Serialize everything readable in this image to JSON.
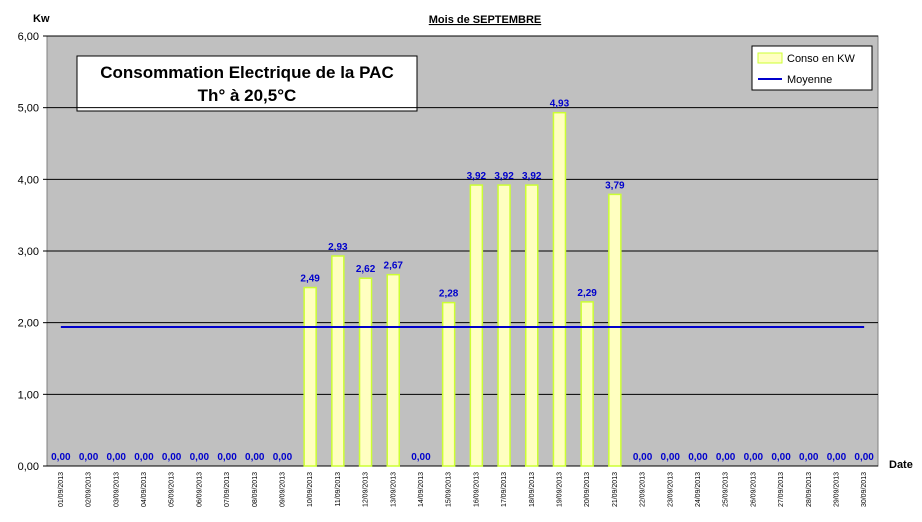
{
  "chart_data": {
    "type": "bar",
    "title": "Mois  de  SEPTEMBRE",
    "y_label": "Kw",
    "x_label": "Date",
    "annotation": [
      "Consommation Electrique de la PAC",
      "Th° à  20,5°C"
    ],
    "categories": [
      "01/09/2013",
      "02/09/2013",
      "03/09/2013",
      "04/09/2013",
      "05/09/2013",
      "06/09/2013",
      "07/09/2013",
      "08/09/2013",
      "09/09/2013",
      "10/09/2013",
      "11/09/2013",
      "12/09/2013",
      "13/09/2013",
      "14/09/2013",
      "15/09/2013",
      "16/09/2013",
      "17/09/2013",
      "18/09/2013",
      "19/09/2013",
      "20/09/2013",
      "21/09/2013",
      "22/09/2013",
      "23/09/2013",
      "24/09/2013",
      "25/09/2013",
      "26/09/2013",
      "27/09/2013",
      "28/09/2013",
      "29/09/2013",
      "30/09/2013"
    ],
    "series": [
      {
        "name": "Conso en KW",
        "type": "bar",
        "color": "#ffffc0",
        "edge_color": "#ccff33",
        "values": [
          0,
          0,
          0,
          0,
          0,
          0,
          0,
          0,
          0,
          2.49,
          2.93,
          2.62,
          2.67,
          0,
          2.28,
          3.92,
          3.92,
          3.92,
          4.93,
          2.29,
          3.79,
          0,
          0,
          0,
          0,
          0,
          0,
          0,
          0,
          0
        ],
        "value_labels": [
          "0,00",
          "0,00",
          "0,00",
          "0,00",
          "0,00",
          "0,00",
          "0,00",
          "0,00",
          "0,00",
          "2,49",
          "2,93",
          "2,62",
          "2,67",
          "0,00",
          "2,28",
          "3,92",
          "3,92",
          "3,92",
          "4,93",
          "2,29",
          "3,79",
          "0,00",
          "0,00",
          "0,00",
          "0,00",
          "0,00",
          "0,00",
          "0,00",
          "0,00",
          "0,00"
        ]
      },
      {
        "name": "Moyenne",
        "type": "line",
        "color": "#0000cc",
        "values": [
          1.94,
          1.94,
          1.94,
          1.94,
          1.94,
          1.94,
          1.94,
          1.94,
          1.94,
          1.94,
          1.94,
          1.94,
          1.94,
          1.94,
          1.94,
          1.94,
          1.94,
          1.94,
          1.94,
          1.94,
          1.94,
          1.94,
          1.94,
          1.94,
          1.94,
          1.94,
          1.94,
          1.94,
          1.94,
          1.94
        ]
      }
    ],
    "ylim": [
      0,
      6
    ],
    "yticks": [
      {
        "value": 0,
        "label": "0,00"
      },
      {
        "value": 1,
        "label": "1,00"
      },
      {
        "value": 2,
        "label": "2,00"
      },
      {
        "value": 3,
        "label": "3,00"
      },
      {
        "value": 4,
        "label": "4,00"
      },
      {
        "value": 5,
        "label": "5,00"
      },
      {
        "value": 6,
        "label": "6,00"
      }
    ],
    "grid": true,
    "legend": "top-right"
  }
}
